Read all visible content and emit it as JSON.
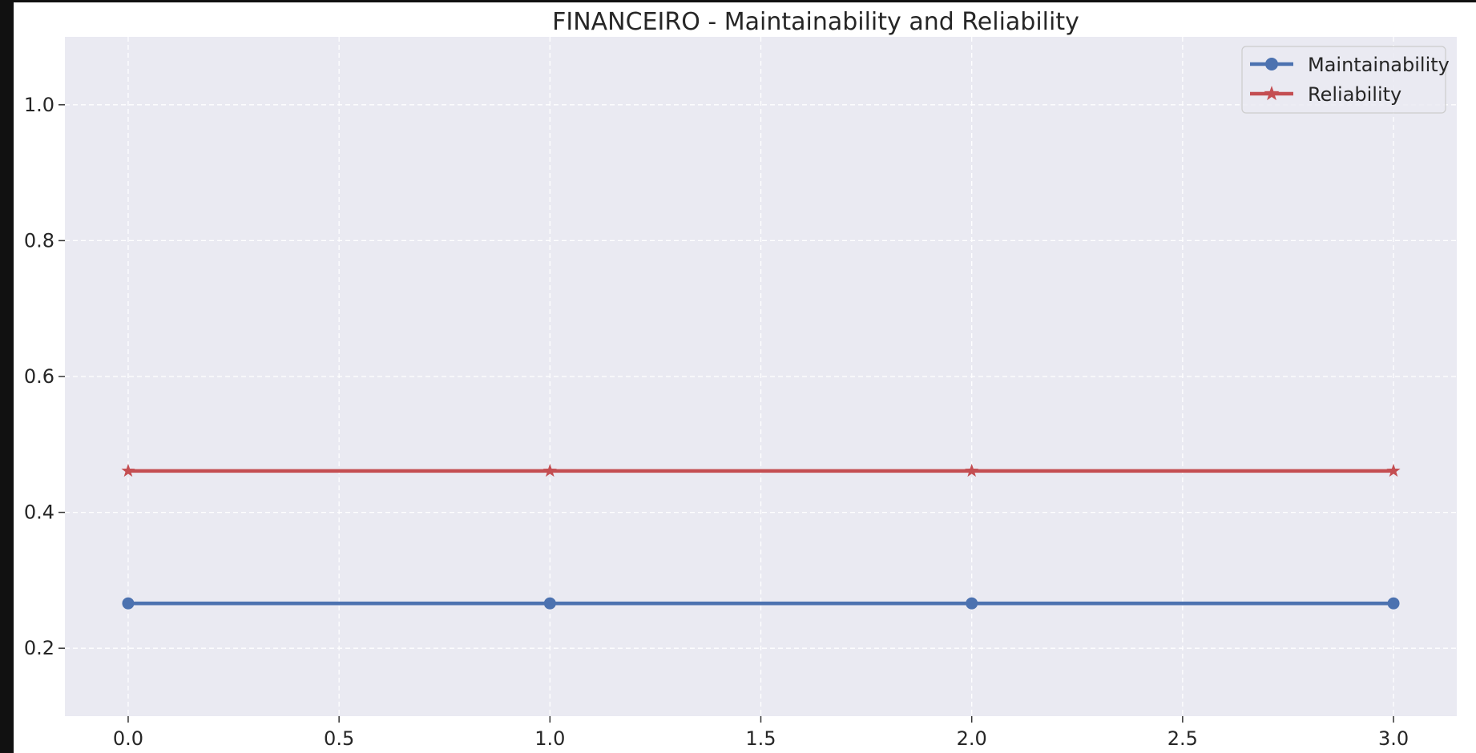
{
  "chart_data": {
    "type": "line",
    "title": "FINANCEIRO - Maintainability and Reliability",
    "xlabel": "",
    "ylabel": "",
    "x": [
      0,
      1,
      2,
      3
    ],
    "xlim": [
      -0.15,
      3.15
    ],
    "ylim": [
      0.1,
      1.1
    ],
    "xticks": [
      0.0,
      0.5,
      1.0,
      1.5,
      2.0,
      2.5,
      3.0
    ],
    "xtick_labels": [
      "0.0",
      "0.5",
      "1.0",
      "1.5",
      "2.0",
      "2.5",
      "3.0"
    ],
    "yticks": [
      0.2,
      0.4,
      0.6,
      0.8,
      1.0
    ],
    "ytick_labels": [
      "0.2",
      "0.4",
      "0.6",
      "0.8",
      "1.0"
    ],
    "grid": true,
    "grid_style": "dashed",
    "legend_position": "top-right",
    "background_color": "#eaeaf2",
    "series": [
      {
        "name": "Maintainability",
        "values": [
          0.266,
          0.266,
          0.266,
          0.266
        ],
        "color": "#4c72b0",
        "marker": "circle"
      },
      {
        "name": "Reliability",
        "values": [
          0.461,
          0.461,
          0.461,
          0.461
        ],
        "color": "#c44e52",
        "marker": "star"
      }
    ]
  }
}
